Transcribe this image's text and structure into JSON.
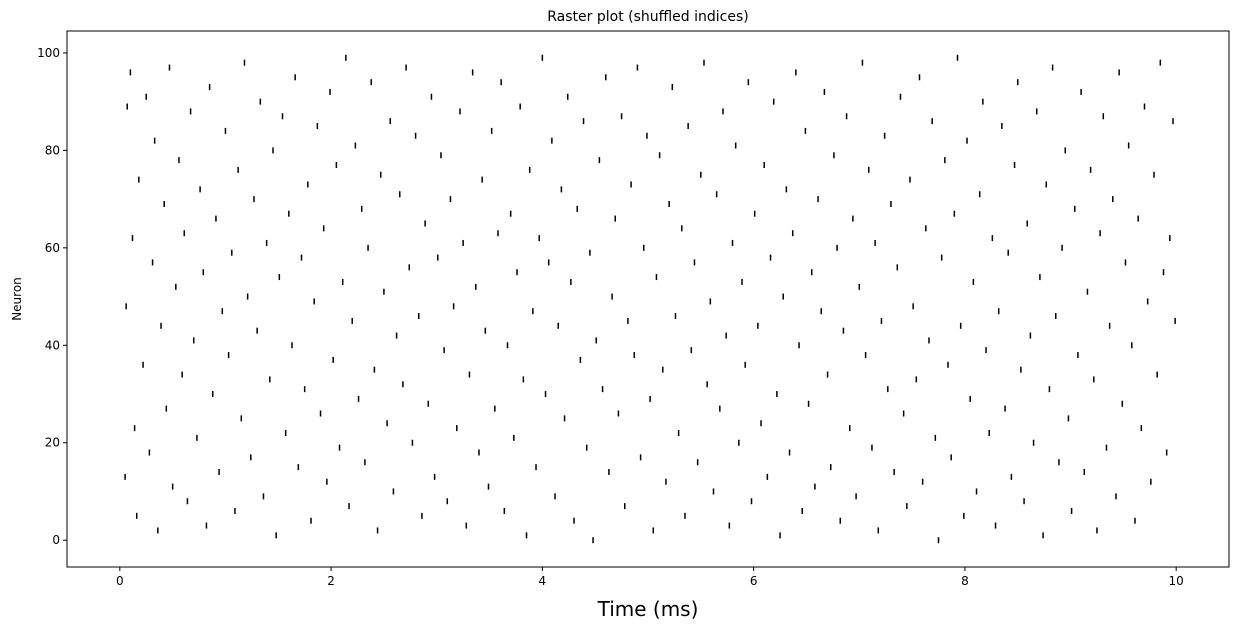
{
  "chart_data": {
    "type": "scatter",
    "subtype": "raster",
    "title": "Raster plot (shuffled indices)",
    "xlabel": "Time (ms)",
    "ylabel": "Neuron",
    "xlim": [
      -0.5,
      10.5
    ],
    "ylim": [
      -5.5,
      104.5
    ],
    "xticks": [
      0,
      2,
      4,
      6,
      8,
      10
    ],
    "yticks": [
      0,
      20,
      40,
      60,
      80,
      100
    ],
    "xtick_labels": [
      "0",
      "2",
      "4",
      "6",
      "8",
      "10"
    ],
    "ytick_labels": [
      "0",
      "20",
      "40",
      "60",
      "80",
      "100"
    ],
    "neuron_count": 100,
    "time_range": [
      0,
      10
    ],
    "marker": "|",
    "marker_color": "#000000",
    "grid": false,
    "legend": "none",
    "spikes": [
      [
        0.05,
        13
      ],
      [
        0.06,
        48
      ],
      [
        0.07,
        89
      ],
      [
        0.1,
        96
      ],
      [
        0.12,
        62
      ],
      [
        0.14,
        23
      ],
      [
        0.16,
        5
      ],
      [
        0.18,
        74
      ],
      [
        0.22,
        36
      ],
      [
        0.25,
        91
      ],
      [
        0.28,
        18
      ],
      [
        0.31,
        57
      ],
      [
        0.33,
        82
      ],
      [
        0.36,
        2
      ],
      [
        0.39,
        44
      ],
      [
        0.42,
        69
      ],
      [
        0.44,
        27
      ],
      [
        0.47,
        97
      ],
      [
        0.5,
        11
      ],
      [
        0.53,
        52
      ],
      [
        0.56,
        78
      ],
      [
        0.59,
        34
      ],
      [
        0.61,
        63
      ],
      [
        0.64,
        8
      ],
      [
        0.67,
        88
      ],
      [
        0.7,
        41
      ],
      [
        0.73,
        21
      ],
      [
        0.76,
        72
      ],
      [
        0.79,
        55
      ],
      [
        0.82,
        3
      ],
      [
        0.85,
        93
      ],
      [
        0.88,
        30
      ],
      [
        0.91,
        66
      ],
      [
        0.94,
        14
      ],
      [
        0.97,
        47
      ],
      [
        1.0,
        84
      ],
      [
        1.03,
        38
      ],
      [
        1.06,
        59
      ],
      [
        1.09,
        6
      ],
      [
        1.12,
        76
      ],
      [
        1.15,
        25
      ],
      [
        1.18,
        98
      ],
      [
        1.21,
        50
      ],
      [
        1.24,
        17
      ],
      [
        1.27,
        70
      ],
      [
        1.3,
        43
      ],
      [
        1.33,
        90
      ],
      [
        1.36,
        9
      ],
      [
        1.39,
        61
      ],
      [
        1.42,
        33
      ],
      [
        1.45,
        80
      ],
      [
        1.48,
        1
      ],
      [
        1.51,
        54
      ],
      [
        1.54,
        87
      ],
      [
        1.57,
        22
      ],
      [
        1.6,
        67
      ],
      [
        1.63,
        40
      ],
      [
        1.66,
        95
      ],
      [
        1.69,
        15
      ],
      [
        1.72,
        58
      ],
      [
        1.75,
        31
      ],
      [
        1.78,
        73
      ],
      [
        1.81,
        4
      ],
      [
        1.84,
        49
      ],
      [
        1.87,
        85
      ],
      [
        1.9,
        26
      ],
      [
        1.93,
        64
      ],
      [
        1.96,
        12
      ],
      [
        1.99,
        92
      ],
      [
        2.02,
        37
      ],
      [
        2.05,
        77
      ],
      [
        2.08,
        19
      ],
      [
        2.11,
        53
      ],
      [
        2.14,
        99
      ],
      [
        2.17,
        7
      ],
      [
        2.2,
        45
      ],
      [
        2.23,
        81
      ],
      [
        2.26,
        29
      ],
      [
        2.29,
        68
      ],
      [
        2.32,
        16
      ],
      [
        2.35,
        60
      ],
      [
        2.38,
        94
      ],
      [
        2.41,
        35
      ],
      [
        2.44,
        2
      ],
      [
        2.47,
        75
      ],
      [
        2.5,
        51
      ],
      [
        2.53,
        24
      ],
      [
        2.56,
        86
      ],
      [
        2.59,
        10
      ],
      [
        2.62,
        42
      ],
      [
        2.65,
        71
      ],
      [
        2.68,
        32
      ],
      [
        2.71,
        97
      ],
      [
        2.74,
        56
      ],
      [
        2.77,
        20
      ],
      [
        2.8,
        83
      ],
      [
        2.83,
        46
      ],
      [
        2.86,
        5
      ],
      [
        2.89,
        65
      ],
      [
        2.92,
        28
      ],
      [
        2.95,
        91
      ],
      [
        2.98,
        13
      ],
      [
        3.01,
        58
      ],
      [
        3.04,
        79
      ],
      [
        3.07,
        39
      ],
      [
        3.1,
        8
      ],
      [
        3.13,
        70
      ],
      [
        3.16,
        48
      ],
      [
        3.19,
        23
      ],
      [
        3.22,
        88
      ],
      [
        3.25,
        61
      ],
      [
        3.28,
        3
      ],
      [
        3.31,
        34
      ],
      [
        3.34,
        96
      ],
      [
        3.37,
        52
      ],
      [
        3.4,
        18
      ],
      [
        3.43,
        74
      ],
      [
        3.46,
        43
      ],
      [
        3.49,
        11
      ],
      [
        3.52,
        84
      ],
      [
        3.55,
        27
      ],
      [
        3.58,
        63
      ],
      [
        3.61,
        94
      ],
      [
        3.64,
        6
      ],
      [
        3.67,
        40
      ],
      [
        3.7,
        67
      ],
      [
        3.73,
        21
      ],
      [
        3.76,
        55
      ],
      [
        3.79,
        89
      ],
      [
        3.82,
        33
      ],
      [
        3.85,
        1
      ],
      [
        3.88,
        76
      ],
      [
        3.91,
        47
      ],
      [
        3.94,
        15
      ],
      [
        3.97,
        62
      ],
      [
        4.0,
        99
      ],
      [
        4.03,
        30
      ],
      [
        4.06,
        57
      ],
      [
        4.09,
        82
      ],
      [
        4.12,
        9
      ],
      [
        4.15,
        44
      ],
      [
        4.18,
        72
      ],
      [
        4.21,
        25
      ],
      [
        4.24,
        91
      ],
      [
        4.27,
        53
      ],
      [
        4.3,
        4
      ],
      [
        4.33,
        68
      ],
      [
        4.36,
        37
      ],
      [
        4.39,
        86
      ],
      [
        4.42,
        19
      ],
      [
        4.45,
        59
      ],
      [
        4.48,
        0
      ],
      [
        4.51,
        41
      ],
      [
        4.54,
        78
      ],
      [
        4.57,
        31
      ],
      [
        4.6,
        95
      ],
      [
        4.63,
        14
      ],
      [
        4.66,
        50
      ],
      [
        4.69,
        66
      ],
      [
        4.72,
        26
      ],
      [
        4.75,
        87
      ],
      [
        4.78,
        7
      ],
      [
        4.81,
        45
      ],
      [
        4.84,
        73
      ],
      [
        4.87,
        38
      ],
      [
        4.9,
        97
      ],
      [
        4.93,
        17
      ],
      [
        4.96,
        60
      ],
      [
        4.99,
        83
      ],
      [
        5.02,
        29
      ],
      [
        5.05,
        2
      ],
      [
        5.08,
        54
      ],
      [
        5.11,
        79
      ],
      [
        5.14,
        35
      ],
      [
        5.17,
        12
      ],
      [
        5.2,
        69
      ],
      [
        5.23,
        93
      ],
      [
        5.26,
        46
      ],
      [
        5.29,
        22
      ],
      [
        5.32,
        64
      ],
      [
        5.35,
        5
      ],
      [
        5.38,
        85
      ],
      [
        5.41,
        39
      ],
      [
        5.44,
        57
      ],
      [
        5.47,
        16
      ],
      [
        5.5,
        75
      ],
      [
        5.53,
        98
      ],
      [
        5.56,
        32
      ],
      [
        5.59,
        49
      ],
      [
        5.62,
        10
      ],
      [
        5.65,
        71
      ],
      [
        5.68,
        27
      ],
      [
        5.71,
        88
      ],
      [
        5.74,
        42
      ],
      [
        5.77,
        3
      ],
      [
        5.8,
        61
      ],
      [
        5.83,
        81
      ],
      [
        5.86,
        20
      ],
      [
        5.89,
        53
      ],
      [
        5.92,
        36
      ],
      [
        5.95,
        94
      ],
      [
        5.98,
        8
      ],
      [
        6.01,
        67
      ],
      [
        6.04,
        44
      ],
      [
        6.07,
        24
      ],
      [
        6.1,
        77
      ],
      [
        6.13,
        13
      ],
      [
        6.16,
        58
      ],
      [
        6.19,
        90
      ],
      [
        6.22,
        30
      ],
      [
        6.25,
        1
      ],
      [
        6.28,
        50
      ],
      [
        6.31,
        72
      ],
      [
        6.34,
        18
      ],
      [
        6.37,
        63
      ],
      [
        6.4,
        96
      ],
      [
        6.43,
        40
      ],
      [
        6.46,
        6
      ],
      [
        6.49,
        84
      ],
      [
        6.52,
        28
      ],
      [
        6.55,
        55
      ],
      [
        6.58,
        11
      ],
      [
        6.61,
        70
      ],
      [
        6.64,
        47
      ],
      [
        6.67,
        92
      ],
      [
        6.7,
        34
      ],
      [
        6.73,
        15
      ],
      [
        6.76,
        79
      ],
      [
        6.79,
        60
      ],
      [
        6.82,
        4
      ],
      [
        6.85,
        43
      ],
      [
        6.88,
        87
      ],
      [
        6.91,
        23
      ],
      [
        6.94,
        66
      ],
      [
        6.97,
        9
      ],
      [
        7.0,
        52
      ],
      [
        7.03,
        98
      ],
      [
        7.06,
        38
      ],
      [
        7.09,
        76
      ],
      [
        7.12,
        19
      ],
      [
        7.15,
        61
      ],
      [
        7.18,
        2
      ],
      [
        7.21,
        45
      ],
      [
        7.24,
        83
      ],
      [
        7.27,
        31
      ],
      [
        7.3,
        69
      ],
      [
        7.33,
        14
      ],
      [
        7.36,
        56
      ],
      [
        7.39,
        91
      ],
      [
        7.42,
        26
      ],
      [
        7.45,
        7
      ],
      [
        7.48,
        74
      ],
      [
        7.51,
        48
      ],
      [
        7.54,
        33
      ],
      [
        7.57,
        95
      ],
      [
        7.6,
        12
      ],
      [
        7.63,
        64
      ],
      [
        7.66,
        41
      ],
      [
        7.69,
        86
      ],
      [
        7.72,
        21
      ],
      [
        7.75,
        0
      ],
      [
        7.78,
        58
      ],
      [
        7.81,
        78
      ],
      [
        7.84,
        36
      ],
      [
        7.87,
        17
      ],
      [
        7.9,
        67
      ],
      [
        7.93,
        99
      ],
      [
        7.96,
        44
      ],
      [
        7.99,
        5
      ],
      [
        8.02,
        82
      ],
      [
        8.05,
        29
      ],
      [
        8.08,
        53
      ],
      [
        8.11,
        10
      ],
      [
        8.14,
        71
      ],
      [
        8.17,
        90
      ],
      [
        8.2,
        39
      ],
      [
        8.23,
        22
      ],
      [
        8.26,
        62
      ],
      [
        8.29,
        3
      ],
      [
        8.32,
        47
      ],
      [
        8.35,
        85
      ],
      [
        8.38,
        27
      ],
      [
        8.41,
        59
      ],
      [
        8.44,
        13
      ],
      [
        8.47,
        77
      ],
      [
        8.5,
        94
      ],
      [
        8.53,
        35
      ],
      [
        8.56,
        8
      ],
      [
        8.59,
        65
      ],
      [
        8.62,
        42
      ],
      [
        8.65,
        20
      ],
      [
        8.68,
        88
      ],
      [
        8.71,
        54
      ],
      [
        8.74,
        1
      ],
      [
        8.77,
        73
      ],
      [
        8.8,
        31
      ],
      [
        8.83,
        97
      ],
      [
        8.86,
        46
      ],
      [
        8.89,
        16
      ],
      [
        8.92,
        60
      ],
      [
        8.95,
        80
      ],
      [
        8.98,
        25
      ],
      [
        9.01,
        6
      ],
      [
        9.04,
        68
      ],
      [
        9.07,
        38
      ],
      [
        9.1,
        92
      ],
      [
        9.13,
        14
      ],
      [
        9.16,
        51
      ],
      [
        9.19,
        76
      ],
      [
        9.22,
        33
      ],
      [
        9.25,
        2
      ],
      [
        9.28,
        63
      ],
      [
        9.31,
        87
      ],
      [
        9.34,
        19
      ],
      [
        9.37,
        44
      ],
      [
        9.4,
        70
      ],
      [
        9.43,
        9
      ],
      [
        9.46,
        96
      ],
      [
        9.49,
        28
      ],
      [
        9.52,
        57
      ],
      [
        9.55,
        81
      ],
      [
        9.58,
        40
      ],
      [
        9.61,
        4
      ],
      [
        9.64,
        66
      ],
      [
        9.67,
        23
      ],
      [
        9.7,
        89
      ],
      [
        9.73,
        49
      ],
      [
        9.76,
        12
      ],
      [
        9.79,
        75
      ],
      [
        9.82,
        34
      ],
      [
        9.85,
        98
      ],
      [
        9.88,
        55
      ],
      [
        9.91,
        18
      ],
      [
        9.94,
        62
      ],
      [
        9.97,
        86
      ],
      [
        9.99,
        45
      ]
    ]
  }
}
